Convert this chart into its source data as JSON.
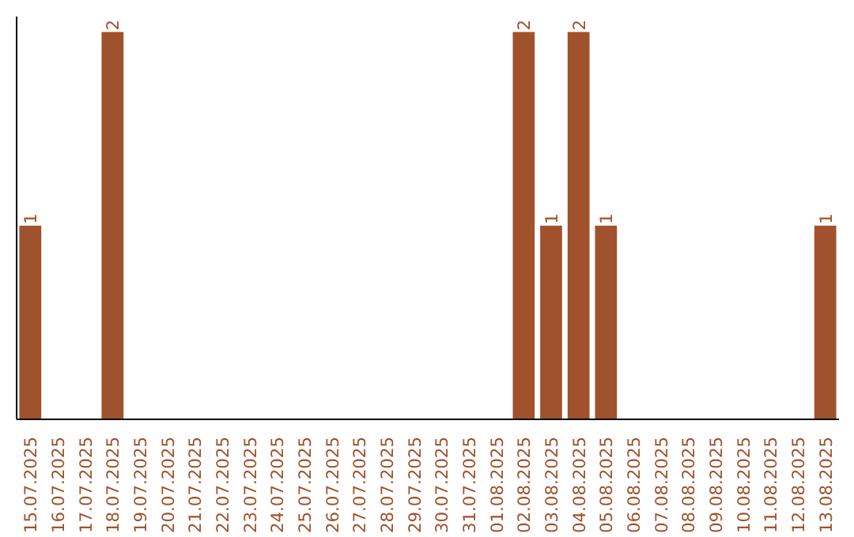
{
  "chart_data": {
    "type": "bar",
    "categories": [
      "15.07.2025",
      "16.07.2025",
      "17.07.2025",
      "18.07.2025",
      "19.07.2025",
      "20.07.2025",
      "21.07.2025",
      "22.07.2025",
      "23.07.2025",
      "24.07.2025",
      "25.07.2025",
      "26.07.2025",
      "27.07.2025",
      "28.07.2025",
      "29.07.2025",
      "30.07.2025",
      "31.07.2025",
      "01.08.2025",
      "02.08.2025",
      "03.08.2025",
      "04.08.2025",
      "05.08.2025",
      "06.08.2025",
      "07.08.2025",
      "08.08.2025",
      "09.08.2025",
      "10.08.2025",
      "11.08.2025",
      "12.08.2025",
      "13.08.2025"
    ],
    "values": [
      1,
      0,
      0,
      2,
      0,
      0,
      0,
      0,
      0,
      0,
      0,
      0,
      0,
      0,
      0,
      0,
      0,
      0,
      2,
      1,
      2,
      1,
      0,
      0,
      0,
      0,
      0,
      0,
      0,
      1
    ],
    "value_labels": [
      "1",
      null,
      null,
      "2",
      null,
      null,
      null,
      null,
      null,
      null,
      null,
      null,
      null,
      null,
      null,
      null,
      null,
      null,
      "2",
      "1",
      "2",
      "1",
      null,
      null,
      null,
      null,
      null,
      null,
      null,
      "1"
    ],
    "color": "#a0522d",
    "grid": false,
    "tick_labels": "x"
  }
}
